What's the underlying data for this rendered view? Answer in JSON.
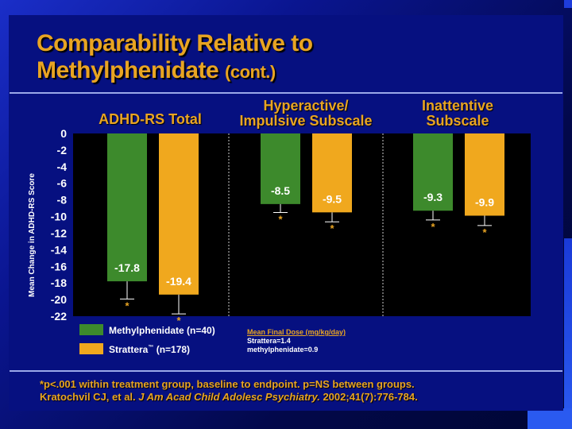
{
  "title": {
    "line1": "Comparability Relative to",
    "line2": "Methylphenidate",
    "line2_suffix": "(cont.)"
  },
  "groups": {
    "total": "ADHD-RS Total",
    "hyper_line1": "Hyperactive/",
    "hyper_line2": "Impulsive Subscale",
    "inatt_line1": "Inattentive",
    "inatt_line2": "Subscale"
  },
  "legend": {
    "methylphenidate": "Methylphenidate (n=40)",
    "strattera_name": "Strattera",
    "strattera_tm": "™",
    "strattera_n": "(n=178)"
  },
  "dose": {
    "title": "Mean Final Dose (mg/kg/day)",
    "line1": "Strattera=1.4",
    "line2": "methylphenidate=0.9"
  },
  "footnote": {
    "line1": "*p<.001 within treatment group, baseline to endpoint.  p=NS between groups.",
    "citation_authors": "Kratochvil CJ, et al.",
    "citation_journal": "J Am Acad Child Adolesc Psychiatry.",
    "citation_detail": "2002;41(7):776-784."
  },
  "colors": {
    "methylphenidate": "#3d8a2c",
    "strattera": "#f0a81e",
    "title": "#e8a422"
  },
  "chart_data": {
    "type": "bar",
    "title": "",
    "xlabel": "",
    "ylabel": "Mean Change in ADHD-RS Score",
    "ylim": [
      -22,
      0
    ],
    "yticks": [
      "0",
      "-2",
      "-4",
      "-6",
      "-8",
      "-10",
      "-12",
      "-14",
      "-16",
      "-18",
      "-20",
      "-22"
    ],
    "categories": [
      "ADHD-RS Total",
      "Hyperactive/Impulsive Subscale",
      "Inattentive Subscale"
    ],
    "series": [
      {
        "name": "Methylphenidate (n=40)",
        "values": [
          -17.8,
          -8.5,
          -9.3
        ],
        "labels": [
          "-17.8",
          "-8.5",
          "-9.3"
        ]
      },
      {
        "name": "Strattera™ (n=178)",
        "values": [
          -19.4,
          -9.5,
          -9.9
        ],
        "labels": [
          "-19.4",
          "-9.5",
          "-9.9"
        ]
      }
    ],
    "significance_marker": "*"
  }
}
